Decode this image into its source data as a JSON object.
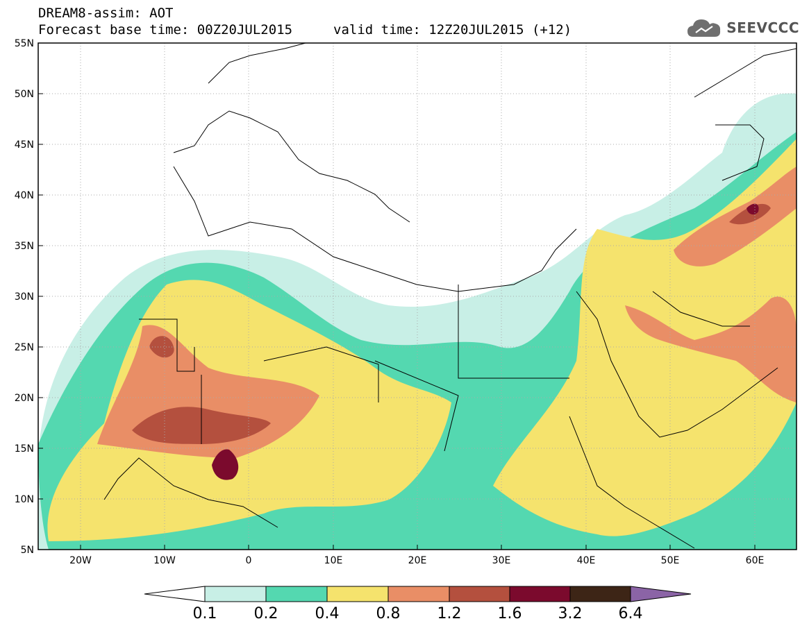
{
  "header": {
    "title_line1": "DREAM8-assim: AOT",
    "title_line2": "Forecast base time: 00Z20JUL2015",
    "valid_time": "valid time: 12Z20JUL2015 (+12)"
  },
  "logo": {
    "text": "SEEVCCC",
    "icon": "cloud-icon"
  },
  "map": {
    "lon_range": [
      -25,
      65
    ],
    "lat_range": [
      5,
      55
    ],
    "lat_ticks": [
      "5N",
      "10N",
      "15N",
      "20N",
      "25N",
      "30N",
      "35N",
      "40N",
      "45N",
      "50N",
      "55N"
    ],
    "lon_ticks": [
      "20W",
      "10W",
      "0",
      "10E",
      "20E",
      "30E",
      "40E",
      "50E",
      "60E"
    ]
  },
  "colorbar": {
    "labels": [
      "0.1",
      "0.2",
      "0.4",
      "0.8",
      "1.2",
      "1.6",
      "3.2",
      "6.4"
    ],
    "colors": [
      "#ffffff",
      "#c8efe6",
      "#54d8b0",
      "#f5e36d",
      "#e98e66",
      "#b4503e",
      "#7b0a2d",
      "#3d2516",
      "#8b64a6"
    ]
  }
}
